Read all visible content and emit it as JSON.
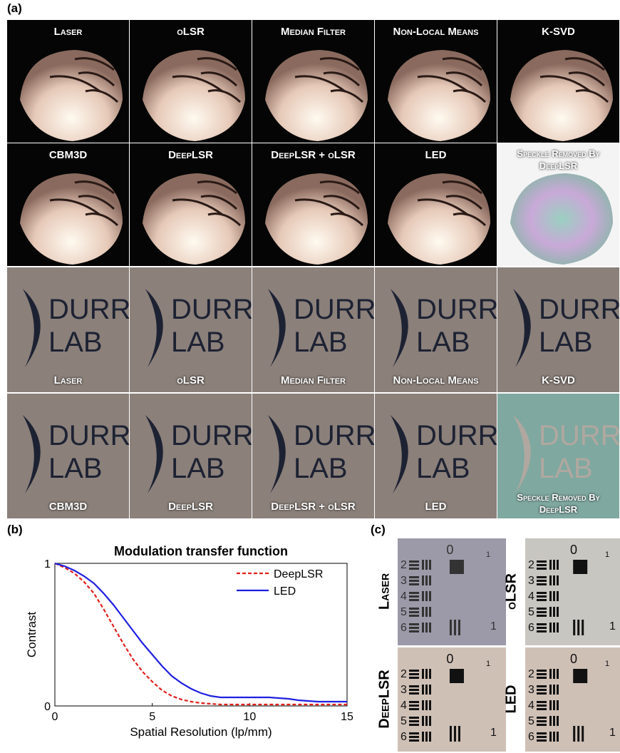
{
  "panel_labels": [
    "(a)",
    "(b)",
    "(c)"
  ],
  "shell_tiles": [
    "Laser",
    "oLSR",
    "Median Filter",
    "Non-Local Means",
    "K-SVD",
    "CBM3D",
    "DeepLSR",
    "DeepLSR + oLSR",
    "LED",
    "Speckle Removed By DeepLSR"
  ],
  "logo_tiles": [
    "Laser",
    "oLSR",
    "Median Filter",
    "Non-Local Means",
    "K-SVD",
    "CBM3D",
    "DeepLSR",
    "DeepLSR + oLSR",
    "LED",
    "Speckle Removed By DeepLSR"
  ],
  "logo_text": [
    "DURR",
    "LAB"
  ],
  "chart_data": {
    "type": "line",
    "title": "Modulation transfer function",
    "x_label": "Spatial Resolution (lp/mm)",
    "y_label": "Contrast",
    "x": [
      0,
      0.5,
      1,
      1.5,
      2,
      2.5,
      3,
      3.5,
      4,
      4.5,
      5,
      5.5,
      6,
      6.5,
      7,
      7.5,
      8,
      8.5,
      9,
      9.5,
      10,
      10.5,
      11,
      11.5,
      12,
      12.5,
      13,
      13.5,
      14,
      14.5,
      15
    ],
    "series": [
      {
        "name": "DeepLSR",
        "color": "#e0201b",
        "dash": true,
        "values": [
          1,
          0.97,
          0.93,
          0.87,
          0.79,
          0.68,
          0.56,
          0.44,
          0.33,
          0.24,
          0.17,
          0.11,
          0.07,
          0.045,
          0.03,
          0.02,
          0.015,
          0.01,
          0.01,
          0.01,
          0.01,
          0.01,
          0.01,
          0.01,
          0.01,
          0.01,
          0.01,
          0.01,
          0.01,
          0.01,
          0.01
        ]
      },
      {
        "name": "LED",
        "color": "#1f1fe0",
        "dash": false,
        "values": [
          1,
          0.98,
          0.95,
          0.91,
          0.86,
          0.79,
          0.71,
          0.62,
          0.53,
          0.44,
          0.36,
          0.28,
          0.21,
          0.16,
          0.12,
          0.09,
          0.07,
          0.06,
          0.06,
          0.06,
          0.06,
          0.06,
          0.06,
          0.055,
          0.05,
          0.04,
          0.035,
          0.03,
          0.03,
          0.03,
          0.03
        ]
      }
    ],
    "xlim": [
      0,
      15
    ],
    "xticks": [
      0,
      5,
      10,
      15
    ],
    "ylim": [
      0,
      1
    ],
    "yticks": [
      0,
      1
    ],
    "legend": "upper right"
  },
  "target_tiles": [
    "Laser",
    "oLSR",
    "DeepLSR",
    "LED"
  ],
  "target_digits": [
    "0",
    "1",
    "2",
    "3",
    "4",
    "5",
    "6"
  ]
}
